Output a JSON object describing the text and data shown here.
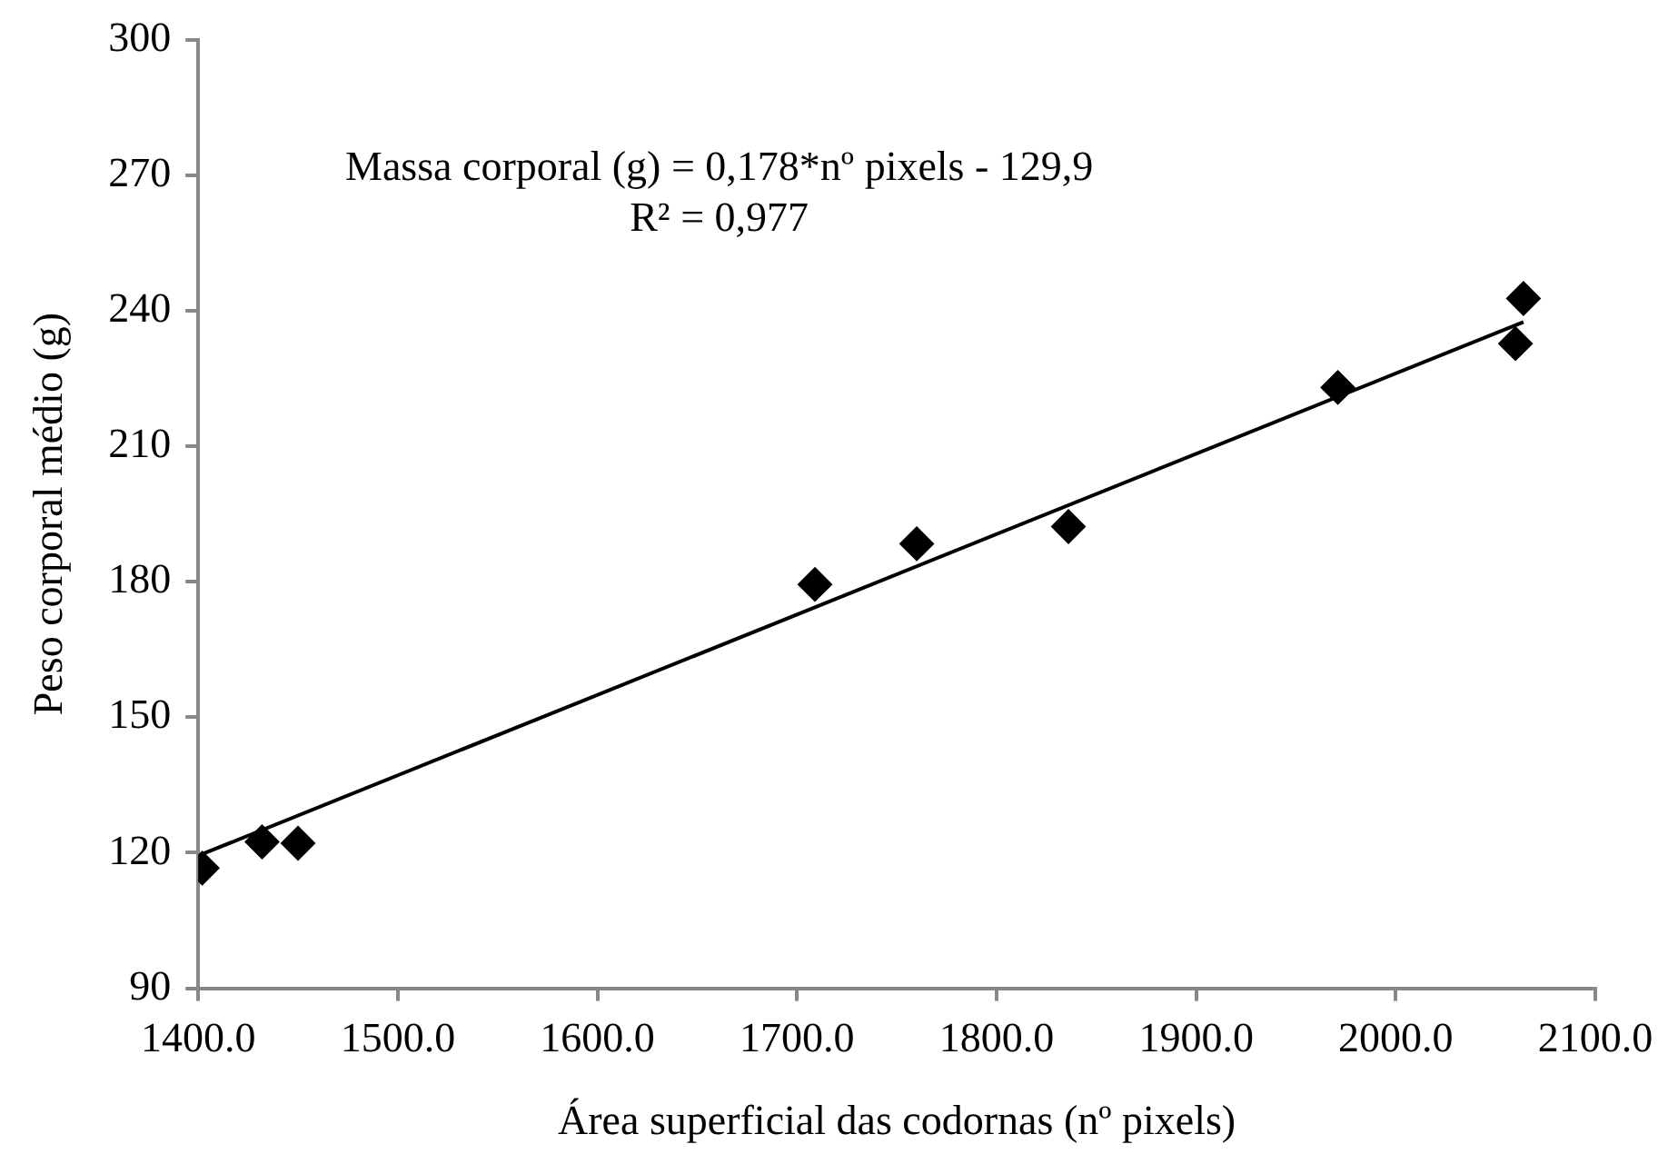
{
  "chart_data": {
    "type": "scatter",
    "xlabel": "Área superficial das codornas (nº pixels)",
    "ylabel": "Peso corporal médio (g)",
    "xlim": [
      1400,
      2100
    ],
    "xticks": [
      {
        "value": 1400,
        "label": "1400.0"
      },
      {
        "value": 1500,
        "label": "1500.0"
      },
      {
        "value": 1600,
        "label": "1600.0"
      },
      {
        "value": 1700,
        "label": "1700.0"
      },
      {
        "value": 1800,
        "label": "1800.0"
      },
      {
        "value": 1900,
        "label": "1900.0"
      },
      {
        "value": 2000,
        "label": "2000.0"
      },
      {
        "value": 2100,
        "label": "2100.0"
      }
    ],
    "ylim": [
      90,
      300
    ],
    "yticks": [
      90,
      120,
      150,
      180,
      210,
      240,
      270,
      300
    ],
    "grid": false,
    "legend": false,
    "series": [
      {
        "marker": "diamond",
        "color": "#000000",
        "x": [
          1402,
          1432,
          1450,
          1709,
          1760,
          1836,
          1971,
          2060,
          2064
        ],
        "values": [
          116.6,
          122.4,
          122.1,
          179.4,
          188.4,
          192.2,
          223.0,
          232.7,
          242.7
        ]
      },
      {
        "type": "line",
        "marker": "none",
        "color": "#000000",
        "x": [
          1402,
          2064
        ],
        "values": [
          119.7,
          237.5
        ]
      }
    ],
    "annotations": [
      "Massa corporal (g) = 0,178*nº pixels - 129,9",
      "R² = 0,977"
    ]
  }
}
